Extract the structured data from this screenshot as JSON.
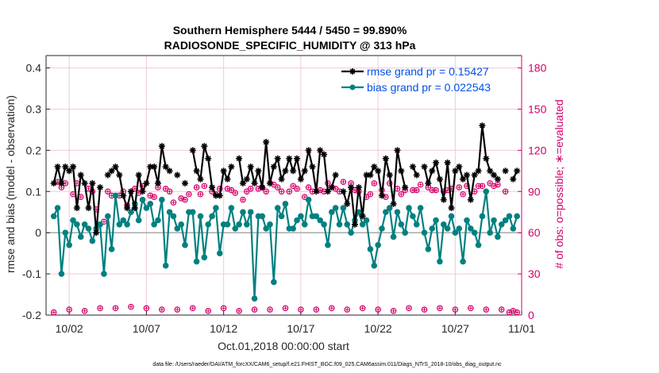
{
  "chart_data": {
    "type": "line",
    "title": "Southern Hemisphere 5444 / 5450 = 99.890%",
    "subtitle": "RADIOSONDE_SPECIFIC_HUMIDITY @ 313 hPa",
    "xlabel": "Oct.01,2018 00:00:00 start",
    "ylabel": "rmse and bias (model - observation)",
    "ylabel_right": "# of obs: o=possible; ∗=evaluated",
    "footnote": "data file: /Users/raeder/DAI/ATM_forcXX/CAM6_setup/f.e21.FHIST_BGC.f09_025.CAM6assim.011/Diags_NTrS_2018-10/obs_diag_output.nc",
    "xlim": [
      0.5,
      31.3
    ],
    "ylim": [
      -0.2,
      0.43
    ],
    "ylim_right": [
      0,
      189
    ],
    "x_ticks": [
      2,
      7,
      12,
      17,
      22,
      27,
      32
    ],
    "x_tick_labels": [
      "10/02",
      "10/07",
      "10/12",
      "10/17",
      "10/22",
      "10/27",
      "11/01"
    ],
    "y_ticks": [
      -0.2,
      -0.1,
      0,
      0.1,
      0.2,
      0.3,
      0.4
    ],
    "y_tick_labels": [
      "-0.2",
      "-0.1",
      "0",
      "0.1",
      "0.2",
      "0.3",
      "0.4"
    ],
    "y_right_ticks": [
      0,
      30,
      60,
      90,
      120,
      150,
      180
    ],
    "y_right_tick_labels": [
      "0",
      "30",
      "60",
      "90",
      "120",
      "150",
      "180"
    ],
    "grid": true,
    "legend_position": "top-right",
    "x": [
      1.0,
      1.25,
      1.5,
      1.75,
      2.0,
      2.25,
      2.5,
      2.75,
      3.0,
      3.25,
      3.5,
      3.75,
      4.0,
      4.25,
      4.5,
      4.75,
      5.0,
      5.25,
      5.5,
      5.75,
      6.0,
      6.25,
      6.5,
      6.75,
      7.0,
      7.25,
      7.5,
      7.75,
      8.0,
      8.25,
      8.5,
      8.75,
      9.0,
      9.25,
      9.5,
      9.75,
      10.0,
      10.25,
      10.5,
      10.75,
      11.0,
      11.25,
      11.5,
      11.75,
      12.0,
      12.25,
      12.5,
      12.75,
      13.0,
      13.25,
      13.5,
      13.75,
      14.0,
      14.25,
      14.5,
      14.75,
      15.0,
      15.25,
      15.5,
      15.75,
      16.0,
      16.25,
      16.5,
      16.75,
      17.0,
      17.25,
      17.5,
      17.75,
      18.0,
      18.25,
      18.5,
      18.75,
      19.0,
      19.25,
      19.5,
      19.75,
      20.0,
      20.25,
      20.5,
      20.75,
      21.0,
      21.25,
      21.5,
      21.75,
      22.0,
      22.25,
      22.5,
      22.75,
      23.0,
      23.25,
      23.5,
      23.75,
      24.0,
      24.25,
      24.5,
      24.75,
      25.0,
      25.25,
      25.5,
      25.75,
      26.0,
      26.25,
      26.5,
      26.75,
      27.0,
      27.25,
      27.5,
      27.75,
      28.0,
      28.25,
      28.5,
      28.75,
      29.0,
      29.25,
      29.5,
      29.75,
      30.0,
      30.25,
      30.5,
      30.75,
      31.0
    ],
    "series": [
      {
        "name": "rmse grand pr = 0.15427",
        "color": "#000000",
        "marker": "asterisk",
        "values": [
          0.12,
          0.16,
          0.12,
          0.16,
          0.15,
          0.16,
          0.06,
          0.14,
          0.12,
          0.06,
          0.12,
          0.0,
          0.11,
          null,
          0.14,
          0.15,
          0.16,
          0.14,
          0.09,
          0.06,
          0.1,
          0.06,
          0.14,
          0.1,
          0.12,
          0.16,
          0.16,
          0.12,
          0.21,
          0.16,
          0.15,
          null,
          0.14,
          null,
          0.12,
          null,
          0.2,
          0.15,
          0.13,
          0.21,
          0.18,
          0.11,
          0.09,
          0.09,
          0.15,
          0.13,
          0.16,
          null,
          0.18,
          0.12,
          0.13,
          0.16,
          0.12,
          0.15,
          0.11,
          0.22,
          0.12,
          0.16,
          0.18,
          0.13,
          0.15,
          0.18,
          0.15,
          0.18,
          0.13,
          0.15,
          0.2,
          0.16,
          0.1,
          0.2,
          0.19,
          0.1,
          0.11,
          0.14,
          null,
          0.1,
          0.07,
          0.11,
          0.02,
          0.11,
          0.04,
          0.14,
          0.14,
          0.16,
          0.15,
          0.09,
          0.18,
          0.14,
          0.07,
          0.2,
          0.15,
          0.11,
          null,
          0.16,
          0.14,
          null,
          0.16,
          0.12,
          0.15,
          0.17,
          0.13,
          0.08,
          0.17,
          0.06,
          0.15,
          0.16,
          0.13,
          0.14,
          0.08,
          0.14,
          0.15,
          0.26,
          0.18,
          0.15,
          0.14,
          0.13,
          null,
          0.15,
          null,
          0.13,
          0.15
        ]
      },
      {
        "name": "bias grand pr = 0.022543",
        "color": "#008080",
        "marker": "circle",
        "values": [
          0.04,
          0.06,
          -0.1,
          0.0,
          -0.03,
          0.03,
          0.02,
          -0.01,
          0.02,
          0.01,
          -0.02,
          0.01,
          0.02,
          -0.1,
          0.04,
          -0.04,
          0.09,
          0.02,
          0.03,
          0.02,
          0.05,
          0.07,
          0.03,
          0.08,
          0.06,
          0.07,
          0.02,
          0.03,
          0.08,
          -0.08,
          0.05,
          0.04,
          0.01,
          0.02,
          -0.03,
          0.05,
          0.05,
          -0.07,
          0.04,
          -0.06,
          0.02,
          0.04,
          0.06,
          -0.05,
          0.02,
          0.02,
          0.06,
          0.01,
          0.02,
          0.05,
          0.02,
          0.05,
          -0.16,
          0.04,
          0.04,
          0.01,
          0.02,
          -0.12,
          0.06,
          0.04,
          0.07,
          0.01,
          0.01,
          0.03,
          0.04,
          0.02,
          0.08,
          0.04,
          0.04,
          0.03,
          0.02,
          -0.03,
          0.05,
          0.06,
          0.02,
          0.06,
          0.02,
          0.0,
          0.03,
          0.05,
          0.02,
          0.03,
          -0.04,
          -0.08,
          -0.03,
          0.01,
          0.05,
          0.06,
          -0.01,
          0.05,
          0.02,
          0.0,
          0.06,
          0.04,
          0.02,
          0.06,
          0.0,
          -0.04,
          0.01,
          0.03,
          -0.07,
          0.02,
          0.01,
          0.04,
          0.0,
          0.01,
          -0.07,
          0.03,
          0.01,
          0.0,
          -0.03,
          0.04,
          0.1,
          0.0,
          0.03,
          -0.01,
          0.02,
          0.03,
          0.04,
          0.01,
          0.04
        ]
      },
      {
        "name": "# of obs possible",
        "color": "#d4006a",
        "marker": "ring",
        "axis": "right",
        "values": [
          2,
          97,
          93,
          96,
          4,
          88,
          96,
          86,
          3,
          92,
          90,
          77,
          5,
          68,
          90,
          87,
          5,
          87,
          90,
          80,
          6,
          92,
          89,
          94,
          5,
          87,
          86,
          93,
          4,
          92,
          90,
          82,
          4,
          85,
          84,
          88,
          5,
          93,
          88,
          94,
          3,
          90,
          88,
          92,
          5,
          92,
          91,
          89,
          3,
          84,
          90,
          92,
          4,
          92,
          93,
          90,
          4,
          95,
          93,
          90,
          5,
          90,
          94,
          92,
          4,
          86,
          93,
          90,
          4,
          91,
          90,
          96,
          5,
          92,
          90,
          97,
          4,
          96,
          91,
          90,
          5,
          86,
          88,
          96,
          4,
          91,
          86,
          96,
          3,
          92,
          88,
          91,
          5,
          91,
          91,
          95,
          4,
          93,
          91,
          91,
          5,
          90,
          91,
          92,
          4,
          93,
          88,
          94,
          5,
          90,
          94,
          94,
          4,
          96,
          94,
          95,
          4,
          90,
          2,
          3,
          2
        ]
      }
    ]
  }
}
